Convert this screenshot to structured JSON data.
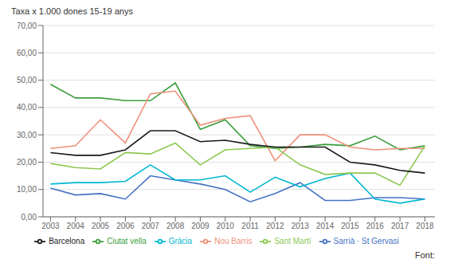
{
  "chart_data": {
    "type": "line",
    "ylabel": "Taxa x 1.000 dones 15-19 anys",
    "annotations": [
      "Font:"
    ],
    "x": [
      2003,
      2004,
      2005,
      2006,
      2007,
      2008,
      2009,
      2010,
      2011,
      2012,
      2013,
      2014,
      2015,
      2016,
      2017,
      2018
    ],
    "xlim": [
      2002.7,
      2018.4
    ],
    "xticks": [
      2003,
      2004,
      2005,
      2006,
      2007,
      2008,
      2009,
      2010,
      2011,
      2012,
      2013,
      2014,
      2015,
      2016,
      2017,
      2018
    ],
    "ylim": [
      0,
      70
    ],
    "yticks": [
      {
        "value": 0,
        "label": "0,00"
      },
      {
        "value": 10,
        "label": "10,00"
      },
      {
        "value": 20,
        "label": "20,00"
      },
      {
        "value": 30,
        "label": "30,00"
      },
      {
        "value": 40,
        "label": "40,00"
      },
      {
        "value": 50,
        "label": "50,00"
      },
      {
        "value": 60,
        "label": "60,00"
      },
      {
        "value": 70,
        "label": "70,00"
      }
    ],
    "grid": true,
    "legend": "bottom",
    "series": [
      {
        "name": "Ciutat vella",
        "color": "#3c9e3c",
        "values": [
          48.5,
          43.5,
          43.5,
          42.5,
          42.5,
          49.0,
          32.0,
          35.5,
          26.0,
          25.0,
          25.5,
          26.5,
          26.0,
          29.5,
          24.5,
          26.0
        ]
      },
      {
        "name": "Sarrià · St Gervasi",
        "color": "#4472c4",
        "values": [
          10.5,
          8.0,
          8.5,
          6.5,
          15.0,
          13.5,
          12.0,
          10.0,
          5.5,
          8.5,
          12.5,
          6.0,
          6.0,
          7.0,
          7.0,
          6.5
        ]
      },
      {
        "name": "Gràcia",
        "color": "#00b8d0",
        "values": [
          12.0,
          12.5,
          12.5,
          13.0,
          19.0,
          13.5,
          13.5,
          15.0,
          9.0,
          14.5,
          11.0,
          14.0,
          16.0,
          6.5,
          5.0,
          6.5
        ]
      },
      {
        "name": "Nou Barris",
        "color": "#f0907a",
        "values": [
          25.0,
          26.0,
          35.5,
          27.0,
          45.0,
          46.0,
          33.5,
          36.0,
          37.0,
          20.5,
          30.0,
          30.0,
          25.5,
          24.5,
          25.0,
          25.0
        ]
      },
      {
        "name": "Sant Martí",
        "color": "#8dc850",
        "values": [
          19.5,
          18.0,
          17.5,
          23.5,
          23.0,
          27.0,
          19.0,
          24.5,
          25.0,
          25.5,
          19.0,
          15.5,
          16.0,
          16.0,
          11.5,
          26.0
        ]
      },
      {
        "name": "Barcelona",
        "color": "#1a1a1a",
        "values": [
          23.5,
          22.5,
          22.5,
          24.5,
          31.5,
          31.5,
          27.5,
          28.0,
          26.5,
          25.5,
          25.5,
          25.5,
          20.0,
          19.0,
          17.0,
          16.0
        ]
      }
    ]
  }
}
